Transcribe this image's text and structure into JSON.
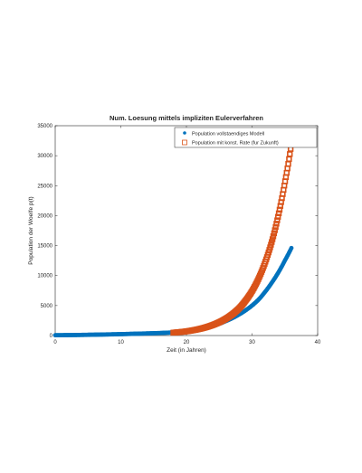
{
  "chart_data": {
    "type": "scatter",
    "title": "Num. Loesung mittels impliziten Eulerverfahren",
    "xlabel": "Zeit (in Jahren)",
    "ylabel": "Population der Woelfe p(t)",
    "xlim": [
      0,
      40
    ],
    "ylim": [
      0,
      35000
    ],
    "xticks": [
      0,
      10,
      20,
      30,
      40
    ],
    "yticks": [
      0,
      5000,
      10000,
      15000,
      20000,
      25000,
      30000,
      35000
    ],
    "grid": false,
    "legend_position": "top-right",
    "series": [
      {
        "name": "Population vollstaendiges Modell",
        "color": "#0072BD",
        "marker": "filled-circle",
        "x": [
          0,
          2,
          4,
          6,
          8,
          10,
          12,
          14,
          16,
          18,
          20,
          22,
          24,
          26,
          28,
          30,
          31,
          32,
          33,
          34,
          35,
          36
        ],
        "y": [
          50,
          70,
          100,
          140,
          180,
          230,
          290,
          350,
          420,
          520,
          700,
          1000,
          1600,
          2400,
          3500,
          5000,
          6000,
          7300,
          8800,
          10500,
          12500,
          14600
        ]
      },
      {
        "name": "Population mit konst. Rate (fur Zukunft)",
        "color": "#D95319",
        "marker": "open-square",
        "x": [
          18,
          20,
          22,
          24,
          26,
          28,
          29,
          30,
          31,
          32,
          33,
          34,
          35,
          35.5,
          36
        ],
        "y": [
          480,
          700,
          1100,
          1750,
          2800,
          4500,
          5800,
          7400,
          9500,
          12200,
          15600,
          20000,
          25500,
          28500,
          32000
        ]
      }
    ]
  }
}
